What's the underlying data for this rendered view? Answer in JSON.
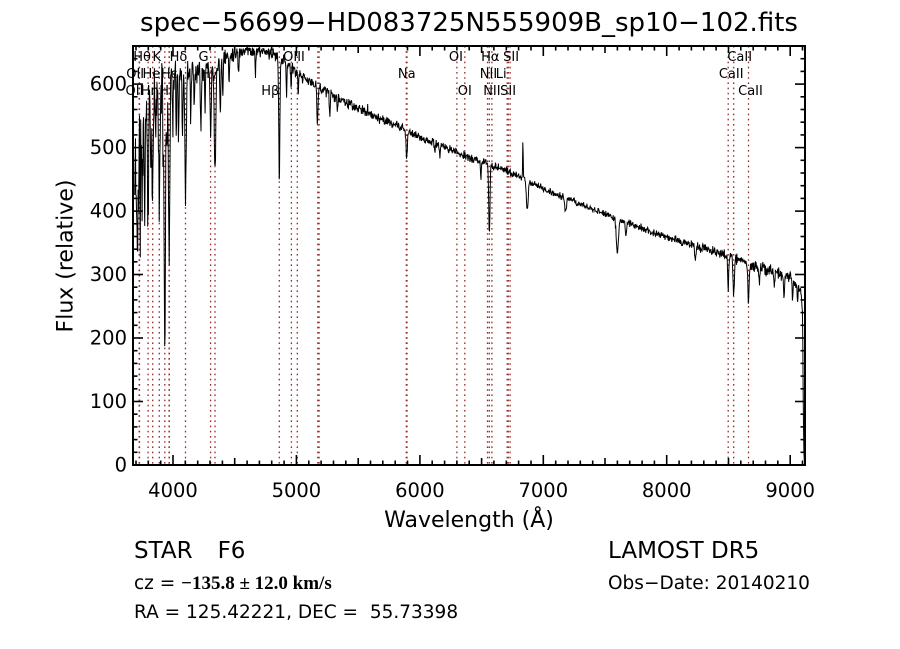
{
  "title": "spec−56699−HD083725N555909B_sp10−102.fits",
  "footer": {
    "left": {
      "class_label": "STAR",
      "subclass": "F6",
      "cz_prefix": "cz = ",
      "cz_value": "−135.8 ± 12.0 km/s",
      "ra_dec": "RA = 125.42221, DEC =  55.73398"
    },
    "right": {
      "survey": "LAMOST DR5",
      "obs_date": "Obs−Date: 20140210"
    }
  },
  "chart_data": {
    "type": "line",
    "title": "spec−56699−HD083725N555909B_sp10−102.fits",
    "xlabel": "Wavelength (Å)",
    "ylabel": "Flux (relative)",
    "xlim": [
      3676,
      9120
    ],
    "ylim": [
      0,
      660
    ],
    "xticks": [
      4000,
      5000,
      6000,
      7000,
      8000,
      9000
    ],
    "yticks": [
      0,
      100,
      200,
      300,
      400,
      500,
      600
    ],
    "x_minor_step": 100,
    "y_minor_step": 20,
    "grid": false,
    "legend": "none",
    "line_color": "#000000",
    "marker_color": "#992b2b",
    "marked_lines": [
      {
        "label": "Hθ",
        "wavelength": 3798.0,
        "row": 0,
        "dx": -6
      },
      {
        "label": "K",
        "wavelength": 3933.7,
        "row": 0,
        "dx": -8
      },
      {
        "label": "Hδ",
        "wavelength": 4101.7,
        "row": 0,
        "dx": -7
      },
      {
        "label": "G",
        "wavelength": 4305.0,
        "row": 0,
        "dx": -7
      },
      {
        "label": "OIII",
        "wavelength": 4980.0,
        "row": 0,
        "dx": 0
      },
      {
        "label": "OI",
        "wavelength": 6300.3,
        "row": 0,
        "dx": -1
      },
      {
        "label": "Hα",
        "wavelength": 6562.8,
        "row": 0,
        "dx": 1
      },
      {
        "label": "SII",
        "wavelength": 6723.0,
        "row": 0,
        "dx": 2
      },
      {
        "label": "CaII",
        "wavelength": 8542.1,
        "row": 0,
        "dx": 6
      },
      {
        "label": "OII",
        "wavelength": 3726.0,
        "row": 1,
        "dx": -4
      },
      {
        "label": "HeI",
        "wavelength": 3889.0,
        "row": 1,
        "dx": -6
      },
      {
        "label": "Hε",
        "wavelength": 3970.1,
        "row": 1,
        "dx": 0
      },
      {
        "label": "Hγ",
        "wavelength": 4340.5,
        "row": 1,
        "dx": -6
      },
      {
        "label": "Na",
        "wavelength": 5893.0,
        "row": 1,
        "dx": 0
      },
      {
        "label": "NII",
        "wavelength": 6548.1,
        "row": 1,
        "dx": 1
      },
      {
        "label": "Li",
        "wavelength": 6707.8,
        "row": 1,
        "dx": -6
      },
      {
        "label": "CaII",
        "wavelength": 8498.0,
        "row": 1,
        "dx": 3
      },
      {
        "label": "OII",
        "wavelength": 3728.8,
        "row": 2,
        "dx": -5
      },
      {
        "label": "Hη",
        "wavelength": 3835.4,
        "row": 2,
        "dx": -3
      },
      {
        "label": "H",
        "wavelength": 3968.5,
        "row": 2,
        "dx": -5
      },
      {
        "label": "Hβ",
        "wavelength": 4861.3,
        "row": 2,
        "dx": -9
      },
      {
        "label": "OI",
        "wavelength": 6363.8,
        "row": 2,
        "dx": 0
      },
      {
        "label": "NII",
        "wavelength": 6583.5,
        "row": 2,
        "dx": 0
      },
      {
        "label": "SII",
        "wavelength": 6730.8,
        "row": 2,
        "dx": -2
      },
      {
        "label": "CaII",
        "wavelength": 8662.1,
        "row": 2,
        "dx": 2
      }
    ],
    "dotted_lines": [
      3726,
      3728.8,
      3798,
      3835.4,
      3889,
      3933.7,
      3968.5,
      3970.1,
      4101.7,
      4305,
      4340.5,
      4861.3,
      4958.9,
      5006.8,
      5172.7,
      5183.6,
      5889.9,
      5895.9,
      6300.3,
      6363.8,
      6548.1,
      6562.8,
      6583.5,
      6707.8,
      6716.4,
      6730.8,
      8498,
      8542.1,
      8662.1
    ],
    "spectrum": {
      "sample_step": 3,
      "seed": 11,
      "continuum": [
        [
          3690,
          420
        ],
        [
          3700,
          500
        ],
        [
          3730,
          545
        ],
        [
          3770,
          565
        ],
        [
          3820,
          582
        ],
        [
          3870,
          595
        ],
        [
          3920,
          602
        ],
        [
          3970,
          598
        ],
        [
          4000,
          610
        ],
        [
          4100,
          616
        ],
        [
          4200,
          622
        ],
        [
          4300,
          628
        ],
        [
          4400,
          640
        ],
        [
          4500,
          650
        ],
        [
          4600,
          655
        ],
        [
          4700,
          652
        ],
        [
          4800,
          648
        ],
        [
          4900,
          638
        ],
        [
          5030,
          612
        ],
        [
          5200,
          594
        ],
        [
          5440,
          567
        ],
        [
          5600,
          552
        ],
        [
          5840,
          532
        ],
        [
          6000,
          516
        ],
        [
          6245,
          497
        ],
        [
          6400,
          484
        ],
        [
          6650,
          468
        ],
        [
          7060,
          430
        ],
        [
          7460,
          398
        ],
        [
          7870,
          368
        ],
        [
          8270,
          342
        ],
        [
          8500,
          330
        ],
        [
          8680,
          315
        ],
        [
          9000,
          296
        ],
        [
          9060,
          286
        ],
        [
          9090,
          272
        ],
        [
          9100,
          240
        ],
        [
          9108,
          60
        ],
        [
          9112,
          8
        ]
      ],
      "absorption": [
        [
          3705,
          140,
          3
        ],
        [
          3712,
          150,
          3
        ],
        [
          3722,
          120,
          3
        ],
        [
          3734,
          165,
          3
        ],
        [
          3750,
          170,
          4
        ],
        [
          3771,
          165,
          4
        ],
        [
          3798,
          175,
          5
        ],
        [
          3820,
          110,
          3
        ],
        [
          3835,
          185,
          5
        ],
        [
          3860,
          100,
          3
        ],
        [
          3889,
          205,
          5
        ],
        [
          3920,
          110,
          3
        ],
        [
          3933.7,
          425,
          5
        ],
        [
          3950,
          110,
          3
        ],
        [
          3968.5,
          280,
          5
        ],
        [
          4000,
          80,
          3
        ],
        [
          4026,
          75,
          3
        ],
        [
          4045,
          85,
          3
        ],
        [
          4077,
          85,
          3
        ],
        [
          4101.7,
          185,
          6
        ],
        [
          4144,
          65,
          3
        ],
        [
          4172,
          55,
          3
        ],
        [
          4226,
          85,
          4
        ],
        [
          4260,
          55,
          3
        ],
        [
          4305,
          105,
          5
        ],
        [
          4340.5,
          175,
          6
        ],
        [
          4383,
          85,
          4
        ],
        [
          4404,
          65,
          3
        ],
        [
          4455,
          45,
          3
        ],
        [
          4531,
          40,
          3
        ],
        [
          4668,
          40,
          3
        ],
        [
          4861.3,
          190,
          4.5
        ],
        [
          4920,
          50,
          3
        ],
        [
          4957,
          35,
          3
        ],
        [
          5015,
          35,
          3
        ],
        [
          5170,
          58,
          5
        ],
        [
          5270,
          38,
          4
        ],
        [
          5332,
          25,
          3
        ],
        [
          5893,
          48,
          5
        ],
        [
          6122,
          18,
          3
        ],
        [
          6162,
          15,
          3
        ],
        [
          6494,
          25,
          4
        ],
        [
          6562.8,
          112,
          5
        ],
        [
          6870,
          45,
          7
        ],
        [
          7180,
          25,
          6
        ],
        [
          7600,
          52,
          9
        ],
        [
          7670,
          22,
          5
        ],
        [
          8230,
          22,
          5
        ],
        [
          8498,
          55,
          4
        ],
        [
          8542.1,
          62,
          5
        ],
        [
          8662.1,
          58,
          5
        ],
        [
          8750,
          22,
          4
        ],
        [
          8870,
          22,
          4
        ],
        [
          8950,
          32,
          5
        ],
        [
          9020,
          35,
          4
        ],
        [
          9060,
          28,
          4
        ]
      ],
      "emission": [
        [
          5577,
          22,
          1.5
        ],
        [
          6835,
          62,
          2
        ]
      ],
      "noise_amp": [
        [
          3690,
          95
        ],
        [
          3750,
          60
        ],
        [
          3850,
          45
        ],
        [
          3950,
          36
        ],
        [
          4050,
          26
        ],
        [
          4200,
          17
        ],
        [
          4400,
          12
        ],
        [
          4700,
          9
        ],
        [
          5000,
          8.5
        ],
        [
          5500,
          7
        ],
        [
          6000,
          6
        ],
        [
          6600,
          5.5
        ],
        [
          7200,
          5
        ],
        [
          7800,
          5.5
        ],
        [
          8300,
          6.5
        ],
        [
          8700,
          8
        ],
        [
          9000,
          9
        ],
        [
          9080,
          7
        ],
        [
          9115,
          4
        ]
      ]
    }
  }
}
